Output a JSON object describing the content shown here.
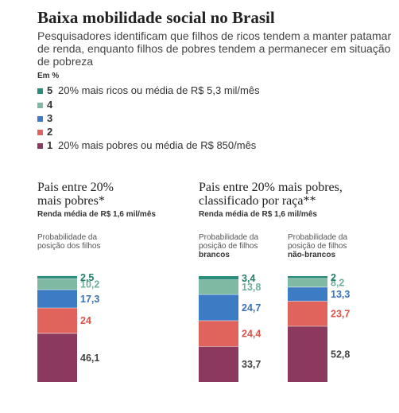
{
  "title": "Baixa mobilidade social no Brasil",
  "subtitle": "Pesquisadores identificam que filhos de ricos tendem a manter patamar de renda, enquanto filhos de pobres tendem a permanecer em situação de pobreza",
  "unit": "Em %",
  "colors": {
    "level5": "#2a8c79",
    "level4": "#7fb9a4",
    "level3": "#3d7cc5",
    "level2": "#e0645c",
    "level1": "#8b3a5e"
  },
  "legend": [
    {
      "level": "5",
      "text": "20% mais ricos ou média de R$ 5,3 mil/mês"
    },
    {
      "level": "4",
      "text": ""
    },
    {
      "level": "3",
      "text": ""
    },
    {
      "level": "2",
      "text": ""
    },
    {
      "level": "1",
      "text": "20% mais pobres ou média de R$ 850/mês"
    }
  ],
  "panels": [
    {
      "title_line1": "Pais entre 20%",
      "title_line2": "mais pobres*",
      "subtitle": "Renda média de R$ 1,6 mil/mês",
      "columns": [
        {
          "label_line1": "Probabilidade da",
          "label_line2": "posição dos filhos",
          "label_line3": ""
        }
      ]
    },
    {
      "title_line1": "Pais entre 20% mais pobres,",
      "title_line2": "classificado por raça**",
      "subtitle": "Renda média de R$ 1,6 mil/mês",
      "columns": [
        {
          "label_line1": "Probabilidade da",
          "label_line2": "posição de filhos",
          "label_line3": "brancos"
        },
        {
          "label_line1": "Probabilidade da",
          "label_line2": "posição de filhos",
          "label_line3": "não-brancos"
        }
      ]
    }
  ],
  "chart_data": [
    {
      "type": "bar",
      "stacked": true,
      "categories": [
        "Probabilidade da posição dos filhos"
      ],
      "series": [
        {
          "name": "1",
          "values": [
            46.1
          ],
          "labels": [
            "46,1"
          ]
        },
        {
          "name": "2",
          "values": [
            24
          ],
          "labels": [
            "24"
          ]
        },
        {
          "name": "3",
          "values": [
            17.3
          ],
          "labels": [
            "17,3"
          ]
        },
        {
          "name": "4",
          "values": [
            10.2
          ],
          "labels": [
            "10,2"
          ]
        },
        {
          "name": "5",
          "values": [
            2.5
          ],
          "labels": [
            "2,5"
          ]
        }
      ],
      "title": "Pais entre 20% mais pobres*",
      "ylim": [
        0,
        100
      ]
    },
    {
      "type": "bar",
      "stacked": true,
      "categories": [
        "brancos",
        "não-brancos"
      ],
      "series": [
        {
          "name": "1",
          "values": [
            33.7,
            52.8
          ],
          "labels": [
            "33,7",
            "52,8"
          ]
        },
        {
          "name": "2",
          "values": [
            24.4,
            23.7
          ],
          "labels": [
            "24,4",
            "23,7"
          ]
        },
        {
          "name": "3",
          "values": [
            24.7,
            13.3
          ],
          "labels": [
            "24,7",
            "13,3"
          ]
        },
        {
          "name": "4",
          "values": [
            13.8,
            8.2
          ],
          "labels": [
            "13,8",
            "8,2"
          ]
        },
        {
          "name": "5",
          "values": [
            3.4,
            2
          ],
          "labels": [
            "3,4",
            "2"
          ]
        }
      ],
      "title": "Pais entre 20% mais pobres, classificado por raça**",
      "ylim": [
        0,
        100
      ]
    }
  ]
}
